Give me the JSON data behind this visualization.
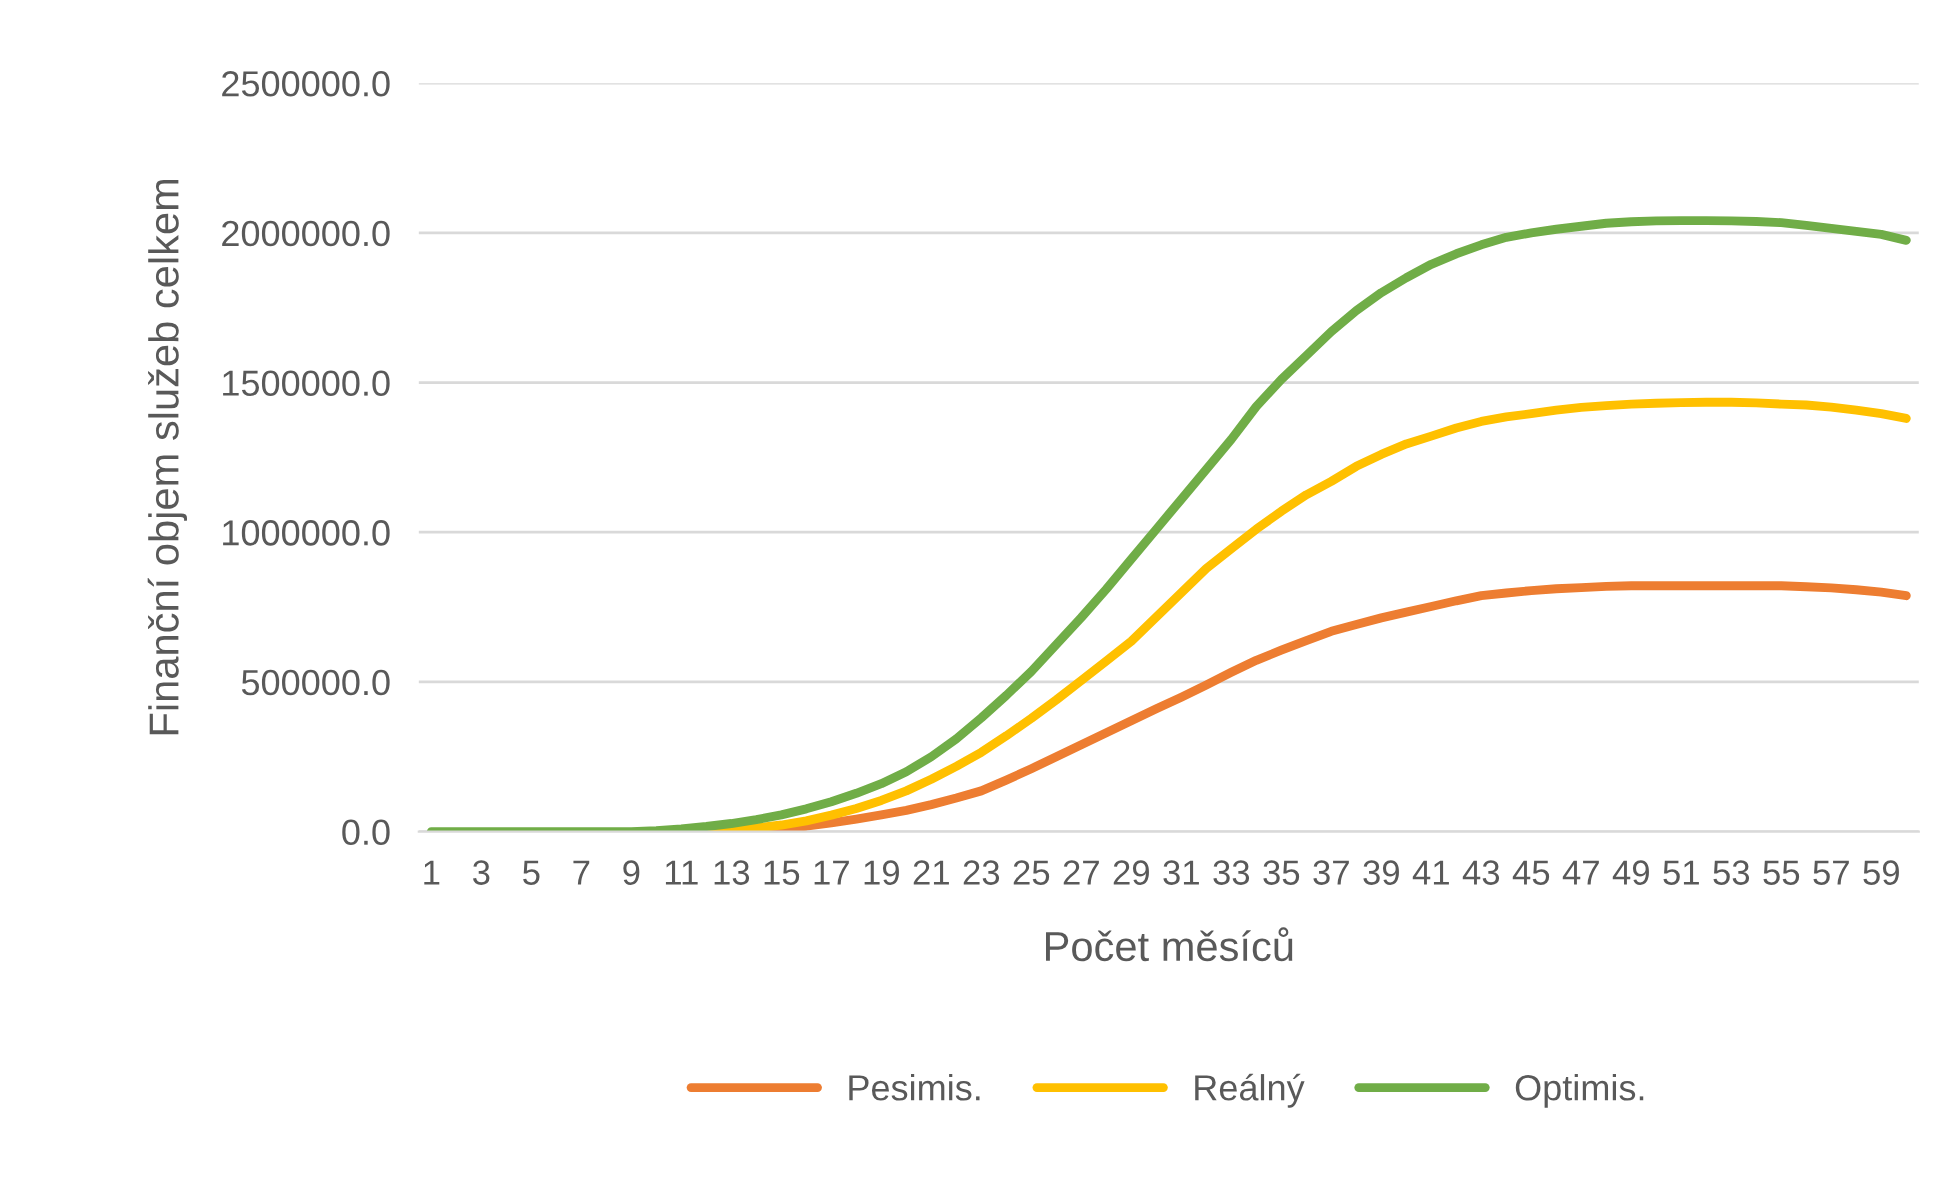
{
  "chart_data": {
    "type": "line",
    "xlabel": "Počet měsíců",
    "ylabel": "Finanční objem služeb celkem",
    "categories": [
      "1",
      null,
      "3",
      null,
      "5",
      null,
      "7",
      null,
      "9",
      null,
      "11",
      null,
      "13",
      null,
      "15",
      null,
      "17",
      null,
      "19",
      null,
      "21",
      null,
      "23",
      null,
      "25",
      null,
      "27",
      null,
      "29",
      null,
      "31",
      null,
      "33",
      null,
      "35",
      null,
      "37",
      null,
      "39",
      null,
      "41",
      null,
      "43",
      null,
      "45",
      null,
      "47",
      null,
      "49",
      null,
      "51",
      null,
      "53",
      null,
      "55",
      null,
      "57",
      null,
      "59",
      null
    ],
    "ylim": [
      0,
      2500000
    ],
    "yticks": [
      {
        "value": 0,
        "label": "0.0"
      },
      {
        "value": 500000,
        "label": "500000.0"
      },
      {
        "value": 1000000,
        "label": "1000000.0"
      },
      {
        "value": 1500000,
        "label": "1500000.0"
      },
      {
        "value": 2000000,
        "label": "2000000.0"
      },
      {
        "value": 2500000,
        "label": "2500000.0"
      }
    ],
    "grid": "y",
    "legend": "bottom",
    "marker": "none",
    "line_style": "solid",
    "series": [
      {
        "name": "Pesimis.",
        "color": "#ed7d31",
        "values": [
          null,
          null,
          null,
          null,
          null,
          null,
          null,
          null,
          null,
          null,
          null,
          null,
          2000,
          5000,
          10000,
          18000,
          29000,
          42000,
          56000,
          71000,
          90000,
          112000,
          136000,
          172000,
          210000,
          250000,
          290000,
          330000,
          370000,
          410000,
          449000,
          490000,
          532000,
          572000,
          606000,
          638000,
          669000,
          692000,
          714000,
          733000,
          752000,
          771000,
          788000,
          797000,
          805000,
          811000,
          815000,
          819000,
          821000,
          821000,
          821000,
          821000,
          821000,
          821000,
          821000,
          818000,
          814000,
          808000,
          800000,
          788000
        ]
      },
      {
        "name": "Reálný",
        "color": "#ffc000",
        "values": [
          null,
          null,
          null,
          null,
          null,
          null,
          null,
          null,
          null,
          null,
          0,
          2000,
          5000,
          12000,
          22000,
          36000,
          55000,
          77000,
          104000,
          136000,
          175000,
          218000,
          265000,
          320000,
          378000,
          440000,
          505000,
          570000,
          636000,
          717000,
          798000,
          879000,
          945000,
          1010000,
          1070000,
          1125000,
          1170000,
          1220000,
          1260000,
          1295000,
          1321000,
          1348000,
          1370000,
          1385000,
          1396000,
          1408000,
          1417000,
          1423000,
          1428000,
          1431000,
          1433000,
          1434000,
          1434000,
          1432000,
          1428000,
          1425000,
          1418000,
          1408000,
          1396000,
          1380000
        ]
      },
      {
        "name": "Optimis.",
        "color": "#70ad47",
        "values": [
          0,
          0,
          0,
          0,
          0,
          0,
          0,
          0,
          0,
          3000,
          9000,
          17000,
          27000,
          40000,
          56000,
          76000,
          100000,
          128000,
          160000,
          200000,
          250000,
          310000,
          380000,
          455000,
          535000,
          625000,
          715000,
          810000,
          910000,
          1010000,
          1110000,
          1210000,
          1310000,
          1420000,
          1510000,
          1590000,
          1670000,
          1740000,
          1800000,
          1850000,
          1895000,
          1930000,
          1960000,
          1985000,
          2000000,
          2012000,
          2022000,
          2032000,
          2037000,
          2040000,
          2041000,
          2041000,
          2040000,
          2038000,
          2034000,
          2025000,
          2015000,
          2005000,
          1995000,
          1975000
        ]
      }
    ]
  }
}
